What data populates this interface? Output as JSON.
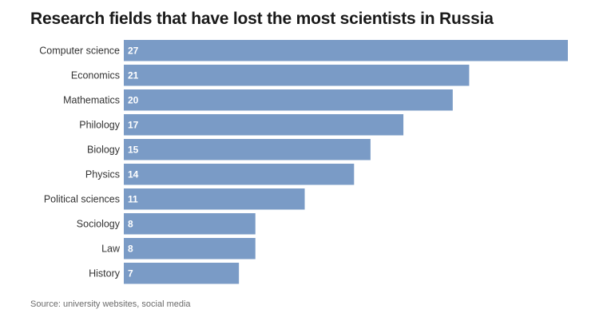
{
  "chart_data": {
    "type": "bar",
    "orientation": "horizontal",
    "title": "Research fields that have lost the most scientists in Russia",
    "categories": [
      "Computer science",
      "Economics",
      "Mathematics",
      "Philology",
      "Biology",
      "Physics",
      "Political sciences",
      "Sociology",
      "Law",
      "History"
    ],
    "values": [
      27,
      21,
      20,
      17,
      15,
      14,
      11,
      8,
      8,
      7
    ],
    "value_labels": [
      "27",
      "21",
      "20",
      "17",
      "15",
      "14",
      "11",
      "8",
      "8",
      "7"
    ],
    "xlim": [
      0,
      27
    ],
    "grid": false,
    "legend": "none",
    "bar_color": "#7a9bc6",
    "source": "Source: university websites, social media"
  }
}
